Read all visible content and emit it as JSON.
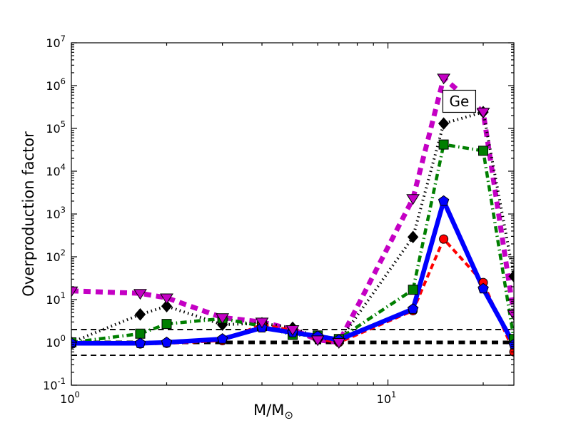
{
  "chart_data": {
    "type": "line",
    "title": "",
    "xlabel": {
      "main": "M/M",
      "subscript": "⊙"
    },
    "ylabel": "Overproduction factor",
    "x_scale": "log",
    "y_scale": "log",
    "xlim": [
      1,
      25
    ],
    "ylim": [
      0.1,
      10000000
    ],
    "grid": false,
    "legend": "none",
    "annotation": {
      "text": "Ge",
      "x": 16.8,
      "y": 430000
    },
    "x_ticks": [
      {
        "value": 1,
        "label_base": "10",
        "label_exp": "0"
      },
      {
        "value": 10,
        "label_base": "10",
        "label_exp": "1"
      }
    ],
    "x_minor_ticks": [
      2,
      3,
      4,
      5,
      6,
      7,
      8,
      9,
      20
    ],
    "y_ticks": [
      {
        "value": 0.1,
        "label_base": "10",
        "label_exp": "-1"
      },
      {
        "value": 1,
        "label_base": "10",
        "label_exp": "0"
      },
      {
        "value": 10,
        "label_base": "10",
        "label_exp": "1"
      },
      {
        "value": 100,
        "label_base": "10",
        "label_exp": "2"
      },
      {
        "value": 1000,
        "label_base": "10",
        "label_exp": "3"
      },
      {
        "value": 10000,
        "label_base": "10",
        "label_exp": "4"
      },
      {
        "value": 100000,
        "label_base": "10",
        "label_exp": "5"
      },
      {
        "value": 1000000,
        "label_base": "10",
        "label_exp": "6"
      },
      {
        "value": 10000000,
        "label_base": "10",
        "label_exp": "7"
      }
    ],
    "reference_lines": [
      {
        "y": 2,
        "color": "#000000",
        "width": 1.8,
        "dash": "8 5.5"
      },
      {
        "y": 1,
        "color": "#000000",
        "width": 5,
        "dash": "9 6.5"
      },
      {
        "y": 0.5,
        "color": "#000000",
        "width": 1.8,
        "dash": "8 5.5"
      }
    ],
    "x": [
      1.0,
      1.65,
      2.0,
      3.0,
      4.0,
      5.0,
      6.0,
      7.0,
      12.0,
      15.0,
      20.0,
      25.0
    ],
    "series": [
      {
        "name": "magenta-thick-dashed-triangles",
        "color": "#c400c4",
        "line": "dashed",
        "width": 7,
        "dash": "10 7",
        "marker": "triangle-down",
        "values": [
          16,
          14,
          11,
          3.8,
          3.0,
          2.0,
          1.15,
          1.0,
          2300,
          1500000,
          240000,
          4.5
        ]
      },
      {
        "name": "black-dotted-diamonds",
        "color": "#000000",
        "line": "dotted",
        "width": 4,
        "dash": "1.5 4.5",
        "marker": "diamond",
        "values": [
          1.0,
          4.5,
          7.0,
          2.6,
          2.8,
          2.2,
          1.3,
          1.05,
          290,
          130000,
          240000,
          35
        ]
      },
      {
        "name": "green-dashdot-squares",
        "color": "#007f00",
        "line": "dashdot",
        "width": 4.5,
        "dash": "9 4.5 1.5 4.5",
        "marker": "square",
        "values": [
          1.0,
          1.6,
          2.7,
          3.6,
          2.4,
          1.5,
          1.45,
          1.2,
          17,
          42000,
          30000,
          1.2
        ]
      },
      {
        "name": "red-dashed-circles",
        "color": "#ff0000",
        "line": "dashed",
        "width": 4,
        "dash": "8 5",
        "marker": "circle",
        "values": [
          0.92,
          0.92,
          0.95,
          1.1,
          2.6,
          1.9,
          1.2,
          1.0,
          5.5,
          260,
          25,
          0.6
        ]
      },
      {
        "name": "blue-solid-pentagons",
        "color": "#0000ff",
        "line": "solid",
        "width": 6.5,
        "dash": "",
        "marker": "pentagon",
        "values": [
          0.95,
          0.95,
          1.0,
          1.2,
          2.2,
          1.7,
          1.4,
          1.15,
          6.0,
          2000,
          18,
          0.9
        ]
      }
    ]
  }
}
